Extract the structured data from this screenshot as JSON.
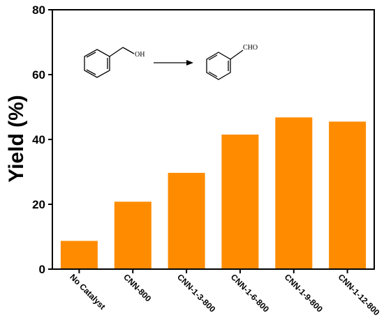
{
  "chart_data": {
    "type": "bar",
    "title": "",
    "xlabel": "",
    "ylabel": "Yield (%)",
    "ylim": [
      0,
      80
    ],
    "yticks": [
      0,
      20,
      40,
      60,
      80
    ],
    "categories": [
      "No Catalyst",
      "CNN-800",
      "CNN-1-3-800",
      "CNN-1-6-800",
      "CNN-1-9-800",
      "CNN-1-12-800"
    ],
    "values": [
      8.7,
      20.8,
      29.7,
      41.5,
      46.8,
      45.5
    ],
    "bar_color": "#FF8C00",
    "grid": false,
    "legend": "none"
  },
  "reaction_scheme": {
    "reactant_group": "OH",
    "product_group": "CHO"
  }
}
